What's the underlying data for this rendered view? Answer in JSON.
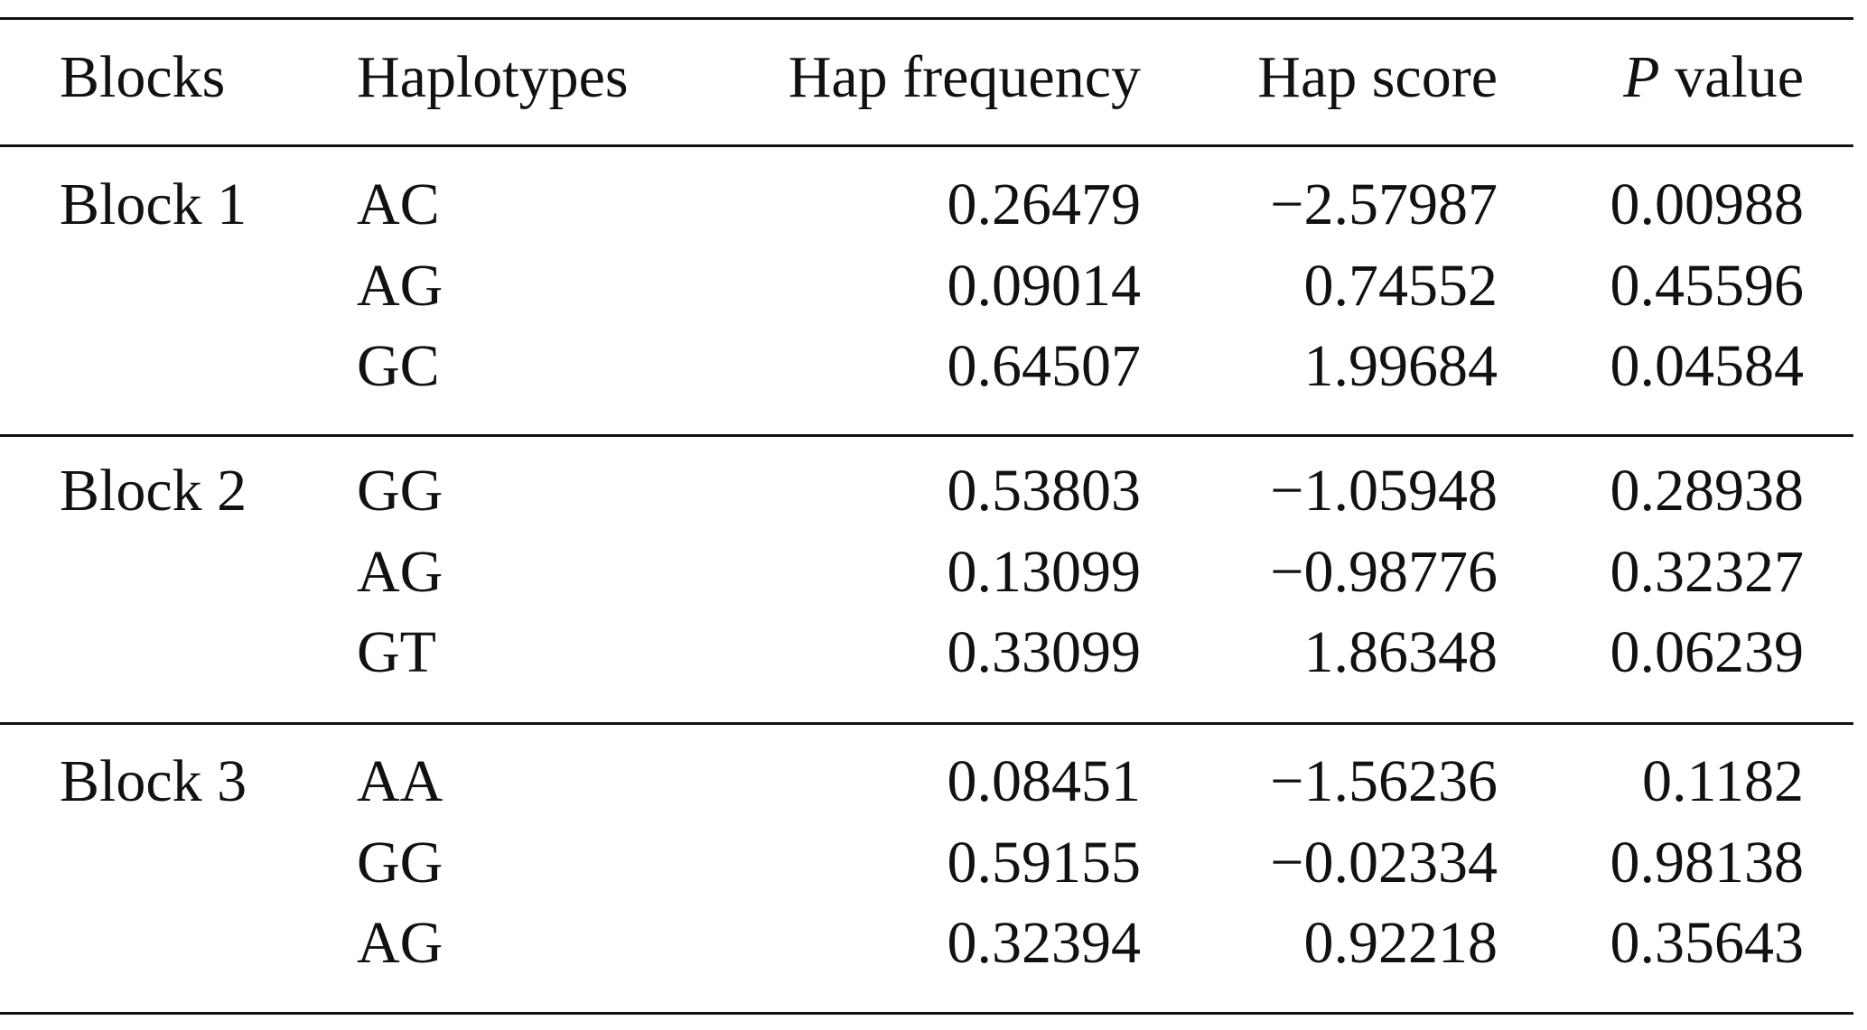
{
  "table": {
    "header": [
      "Blocks",
      "Haplotypes",
      "Hap frequency",
      "Hap score",
      [
        "P",
        "value"
      ]
    ],
    "blocks": [
      {
        "label": "Block 1",
        "rows": [
          [
            "AC",
            "0.26479",
            "−2.57987",
            "0.00988"
          ],
          [
            "AG",
            "0.09014",
            "0.74552",
            "0.45596"
          ],
          [
            "GC",
            "0.64507",
            "1.99684",
            "0.04584"
          ]
        ]
      },
      {
        "label": "Block 2",
        "rows": [
          [
            "GG",
            "0.53803",
            "−1.05948",
            "0.28938"
          ],
          [
            "AG",
            "0.13099",
            "−0.98776",
            "0.32327"
          ],
          [
            "GT",
            "0.33099",
            "1.86348",
            "0.06239"
          ]
        ]
      },
      {
        "label": "Block 3",
        "rows": [
          [
            "AA",
            "0.08451",
            "−1.56236",
            "0.1182"
          ],
          [
            "GG",
            "0.59155",
            "−0.02334",
            "0.98138"
          ],
          [
            "AG",
            "0.32394",
            "0.92218",
            "0.35643"
          ]
        ]
      }
    ]
  }
}
